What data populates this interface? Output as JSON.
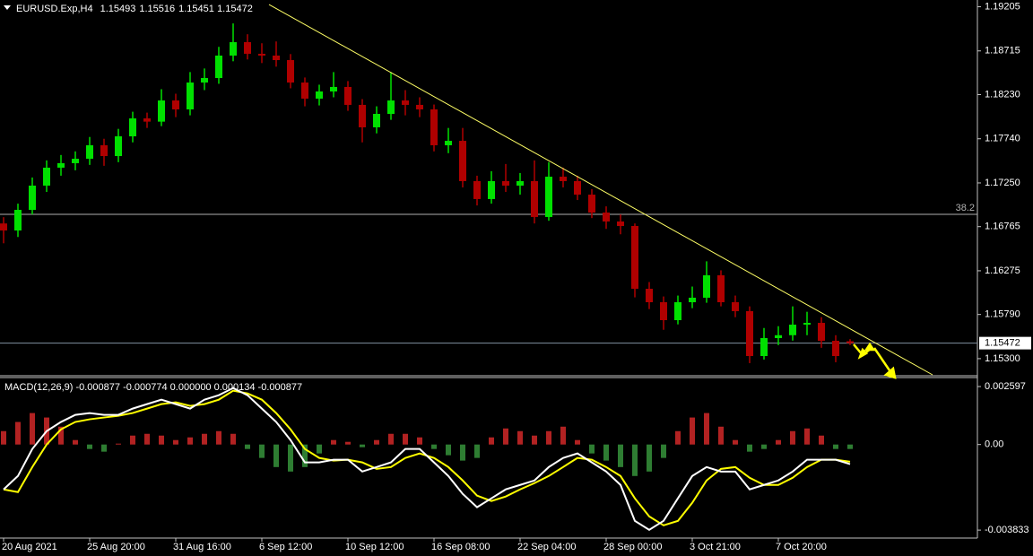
{
  "chart_data": [
    {
      "type": "candlestick",
      "title": "EURUSD.Exp,H4",
      "categories": [
        "20 Aug 2021",
        null,
        null,
        null,
        null,
        null,
        "25 Aug 20:00",
        null,
        null,
        null,
        null,
        null,
        "31 Aug 16:00",
        null,
        null,
        null,
        null,
        null,
        "6 Sep 12:00",
        null,
        null,
        null,
        null,
        null,
        "10 Sep 12:00",
        null,
        null,
        null,
        null,
        null,
        "16 Sep 08:00",
        null,
        null,
        null,
        null,
        null,
        "22 Sep 04:00",
        null,
        null,
        null,
        null,
        null,
        "28 Sep 00:00",
        null,
        null,
        null,
        null,
        null,
        "3 Oct 21:00",
        null,
        null,
        null,
        null,
        null,
        "7 Oct 20:00",
        null,
        null,
        null,
        null,
        null
      ],
      "open": [
        1.168,
        1.16722,
        1.16951,
        1.1722,
        1.17419,
        1.17469,
        1.17518,
        1.17668,
        1.17548,
        1.17767,
        1.17966,
        1.1793,
        1.18165,
        1.18066,
        1.18364,
        1.18414,
        1.18663,
        1.18812,
        1.18683,
        1.18663,
        1.18613,
        1.18364,
        1.18185,
        1.18265,
        1.18315,
        1.18116,
        1.17867,
        1.18016,
        1.18165,
        1.18116,
        1.18066,
        1.17668,
        1.17717,
        1.1727,
        1.17071,
        1.1727,
        1.1722,
        1.1727,
        1.16872,
        1.17319,
        1.1727,
        1.1712,
        1.16921,
        1.16822,
        1.16772,
        1.16075,
        1.15926,
        1.15727,
        1.15926,
        1.15976,
        1.16225,
        1.15926,
        1.15827,
        1.15329,
        1.15528,
        1.1556,
        1.15677,
        1.15697,
        1.15498,
        1.15493
      ],
      "high": [
        1.1687,
        1.1702,
        1.1731,
        1.175,
        1.1756,
        1.176,
        1.1776,
        1.1774,
        1.1785,
        1.1804,
        1.1803,
        1.1829,
        1.1824,
        1.1848,
        1.1852,
        1.1876,
        1.1902,
        1.189,
        1.188,
        1.1882,
        1.1868,
        1.1842,
        1.1834,
        1.1848,
        1.1838,
        1.1818,
        1.181,
        1.1848,
        1.1828,
        1.182,
        1.1812,
        1.1786,
        1.1786,
        1.1733,
        1.1738,
        1.1746,
        1.1736,
        1.175,
        1.1748,
        1.1742,
        1.1733,
        1.1718,
        1.1699,
        1.169,
        1.168,
        1.1615,
        1.1599,
        1.16,
        1.161,
        1.1638,
        1.1628,
        1.16,
        1.1588,
        1.1564,
        1.1566,
        1.1588,
        1.1582,
        1.1576,
        1.1556,
        1.15516
      ],
      "low": [
        1.1658,
        1.1665,
        1.169,
        1.1715,
        1.1733,
        1.1739,
        1.1745,
        1.1744,
        1.1748,
        1.177,
        1.1786,
        1.1788,
        1.1798,
        1.18,
        1.1828,
        1.1835,
        1.186,
        1.1862,
        1.1858,
        1.1854,
        1.183,
        1.181,
        1.1811,
        1.182,
        1.1805,
        1.177,
        1.178,
        1.1795,
        1.18,
        1.1798,
        1.176,
        1.1758,
        1.172,
        1.17,
        1.1702,
        1.1715,
        1.1712,
        1.168,
        1.1683,
        1.172,
        1.1706,
        1.1686,
        1.1674,
        1.1668,
        1.1598,
        1.1585,
        1.1562,
        1.1568,
        1.1586,
        1.1592,
        1.1588,
        1.1576,
        1.1525,
        1.1529,
        1.1545,
        1.155,
        1.1556,
        1.1542,
        1.1526,
        1.15451
      ],
      "close": [
        1.16722,
        1.16951,
        1.1722,
        1.17419,
        1.17469,
        1.17518,
        1.17668,
        1.17548,
        1.17767,
        1.17966,
        1.1793,
        1.18165,
        1.18066,
        1.18364,
        1.18414,
        1.18663,
        1.18812,
        1.18683,
        1.18663,
        1.18613,
        1.18364,
        1.18185,
        1.18265,
        1.18315,
        1.18116,
        1.17867,
        1.18016,
        1.18165,
        1.18116,
        1.18066,
        1.17668,
        1.17717,
        1.1727,
        1.17071,
        1.1727,
        1.1722,
        1.1727,
        1.16872,
        1.17319,
        1.1727,
        1.1712,
        1.16921,
        1.16822,
        1.16772,
        1.16075,
        1.15926,
        1.15727,
        1.15926,
        1.15976,
        1.16225,
        1.15926,
        1.15827,
        1.15329,
        1.15528,
        1.1556,
        1.15677,
        1.15697,
        1.15498,
        1.15329,
        1.15472
      ],
      "up_color": "#00e000",
      "down_color": "#b00000",
      "ylim": [
        1.1512,
        1.1926
      ],
      "yticks": [
        1.19205,
        1.18715,
        {
          "value": 1.1823,
          "label": "1.18230"
        },
        {
          "value": 1.1774,
          "label": "1.17740"
        },
        {
          "value": 1.1725,
          "label": "1.17250"
        },
        1.16765,
        1.16275,
        {
          "value": 1.1579,
          "label": "1.15790"
        },
        {
          "value": 1.153,
          "label": "1.15300"
        }
      ],
      "current_price": 1.15472,
      "fib_level": {
        "label": "38.2",
        "value": 1.16901
      },
      "trendline": {
        "x": [
          18.5,
          64.75
        ],
        "y": [
          1.1923,
          1.1512
        ],
        "color": "#ffff66"
      }
    },
    {
      "type": "macd",
      "title": "MACD(12,26,9) -0.000877 -0.000774 0.000000 0.000134 -0.000877",
      "histogram": {
        "pos_color": "#b22222",
        "neg_color": "#2e7d32",
        "values": [
          0.0006,
          0.00101,
          0.00141,
          0.00121,
          0.0008,
          0.0002,
          -0.0002,
          -0.00032,
          4e-05,
          0.0004,
          0.00048,
          0.0004,
          0.0002,
          0.00032,
          0.00048,
          0.0006,
          0.00048,
          -0.0002,
          -0.0006,
          -0.00101,
          -0.00121,
          -0.00101,
          -0.0004,
          0.0002,
          0.00012,
          -0.00012,
          0.0002,
          0.00048,
          0.00048,
          0.00032,
          -0.0002,
          -0.00048,
          -0.00072,
          -0.0006,
          0.00032,
          0.00072,
          0.0006,
          0.0004,
          0.0006,
          0.0008,
          0.0002,
          -0.0004,
          -0.00072,
          -0.00101,
          -0.00141,
          -0.00121,
          -0.0006,
          0.0006,
          0.00121,
          0.00141,
          0.0008,
          0.0002,
          -0.00032,
          -0.0002,
          0.0002,
          0.0006,
          0.00072,
          0.0004,
          -0.0002,
          -0.0002
        ]
      },
      "macd_line": {
        "color": "#ffffff",
        "values": [
          -0.00201,
          -0.00141,
          -0.0002,
          0.0006,
          0.00101,
          0.00133,
          0.00141,
          0.00133,
          0.00133,
          0.00161,
          0.00181,
          0.00201,
          0.00181,
          0.00161,
          0.00201,
          0.00221,
          0.00253,
          0.00221,
          0.00161,
          0.00101,
          0.0002,
          -0.0008,
          -0.0008,
          -0.00068,
          -0.00068,
          -0.00121,
          -0.00101,
          -0.0008,
          -0.0002,
          -0.0002,
          -0.0008,
          -0.00141,
          -0.00221,
          -0.00281,
          -0.00241,
          -0.00201,
          -0.00181,
          -0.00161,
          -0.00101,
          -0.0006,
          -0.0004,
          -0.0008,
          -0.00121,
          -0.00181,
          -0.00342,
          -0.00382,
          -0.00342,
          -0.00241,
          -0.00141,
          -0.00101,
          -0.00121,
          -0.00121,
          -0.00201,
          -0.00181,
          -0.00161,
          -0.00121,
          -0.00068,
          -0.00068,
          -0.00068,
          -0.00088
        ]
      },
      "signal_line": {
        "color": "#ffff00",
        "values": [
          -0.00201,
          -0.00213,
          -0.00101,
          0,
          0.00068,
          0.00101,
          0.00113,
          0.00121,
          0.00129,
          0.00141,
          0.00161,
          0.00181,
          0.00189,
          0.00173,
          0.00181,
          0.00201,
          0.00241,
          0.00229,
          0.00201,
          0.00141,
          0.00068,
          -0.0002,
          -0.0006,
          -0.00072,
          -0.00068,
          -0.0008,
          -0.00109,
          -0.00101,
          -0.0006,
          -0.0004,
          -0.0006,
          -0.00101,
          -0.00161,
          -0.00229,
          -0.00253,
          -0.00233,
          -0.00201,
          -0.00173,
          -0.00141,
          -0.00101,
          -0.0006,
          -0.00068,
          -0.00101,
          -0.00141,
          -0.00241,
          -0.00322,
          -0.00362,
          -0.00342,
          -0.00261,
          -0.00161,
          -0.00109,
          -0.00101,
          -0.00149,
          -0.00181,
          -0.00181,
          -0.00149,
          -0.00101,
          -0.00068,
          -0.00068,
          -0.00077
        ]
      },
      "ylim": [
        -0.00419,
        0.00296
      ],
      "yticks": [
        0.002597,
        {
          "value": 0,
          "label": "0.00"
        },
        -0.003833
      ]
    }
  ]
}
